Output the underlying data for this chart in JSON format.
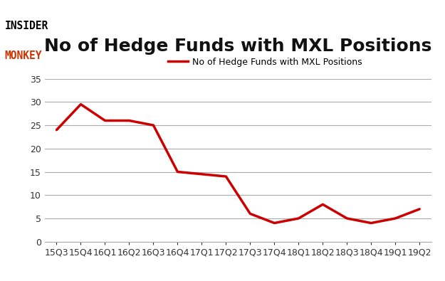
{
  "x_labels": [
    "15Q3",
    "15Q4",
    "16Q1",
    "16Q2",
    "16Q3",
    "16Q4",
    "17Q1",
    "17Q2",
    "17Q3",
    "17Q4",
    "18Q1",
    "18Q2",
    "18Q3",
    "18Q4",
    "19Q1",
    "19Q2"
  ],
  "y_values": [
    24,
    29.5,
    26,
    26,
    25,
    15,
    14.5,
    14,
    6,
    4,
    5,
    8,
    5,
    4,
    5,
    7
  ],
  "line_color": "#cc0000",
  "line_width": 2.5,
  "title": "No of Hedge Funds with MXL Positions",
  "title_fontsize": 18,
  "legend_label": "No of Hedge Funds with MXL Positions",
  "ylim": [
    0,
    35
  ],
  "yticks": [
    0,
    5,
    10,
    15,
    20,
    25,
    30,
    35
  ],
  "background_color": "#ffffff",
  "grid_color": "#aaaaaa",
  "logo_insider_color": "#000000",
  "logo_monkey_color": "#cc3300",
  "tick_label_fontsize": 9,
  "legend_fontsize": 9
}
